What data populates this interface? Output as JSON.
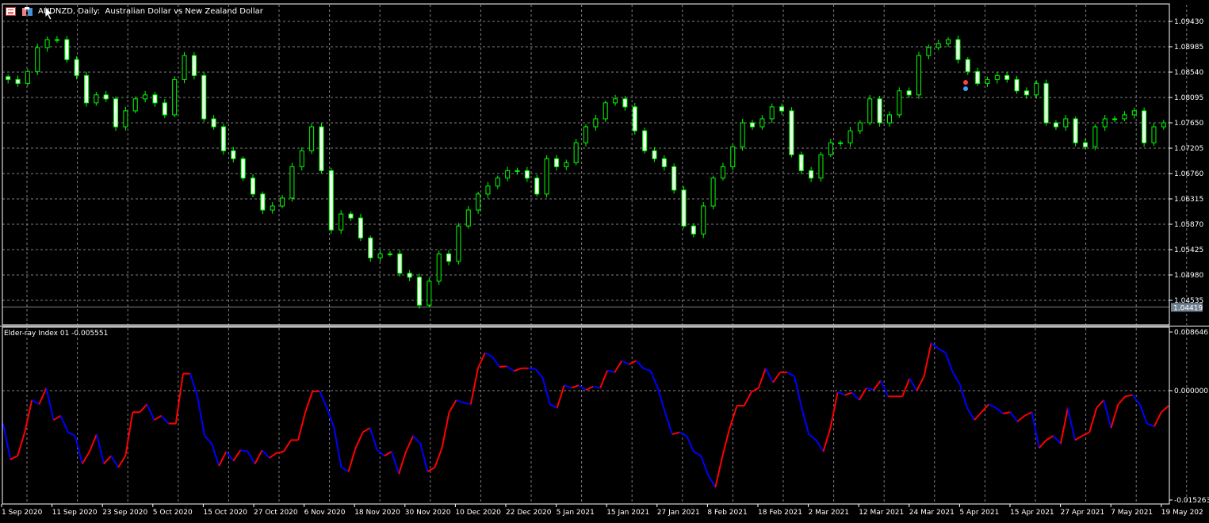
{
  "header": {
    "title": "AUDNZD, Daily:  Australian Dollar vs New Zealand Dollar",
    "icons": [
      "list-icon",
      "chart-toolbox-icon"
    ]
  },
  "colors": {
    "background": "#000000",
    "grid": "#808080",
    "candle_up_outline": "#00ff00",
    "candle_up_fill": "#000000",
    "candle_down_fill": "#f0fff0",
    "indicator_rising": "#ff0000",
    "indicator_falling": "#0000ff",
    "current_price_box": "#708090"
  },
  "chart_data": [
    {
      "type": "candlestick",
      "symbol": "AUDNZD",
      "timeframe": "Daily",
      "price_ticks": [
        "1.09430",
        "1.08985",
        "1.08540",
        "1.08095",
        "1.07650",
        "1.07205",
        "1.06760",
        "1.06315",
        "1.05870",
        "1.05425",
        "1.04980",
        "1.04535"
      ],
      "current_price": "1.04419",
      "ylim": [
        1.0443,
        1.0975
      ],
      "grid": true,
      "x_ticks": [
        "1 Sep 2020",
        "11 Sep 2020",
        "23 Sep 2020",
        "5 Oct 2020",
        "15 Oct 2020",
        "27 Oct 2020",
        "6 Nov 2020",
        "18 Nov 2020",
        "30 Nov 2020",
        "10 Dec 2020",
        "22 Dec 2020",
        "5 Jan 2021",
        "15 Jan 2021",
        "27 Jan 2021",
        "8 Feb 2021",
        "18 Feb 2021",
        "2 Mar 2021",
        "12 Mar 2021",
        "24 Mar 2021",
        "5 Apr 2021",
        "15 Apr 2021",
        "27 Apr 2021",
        "7 May 2021",
        "19 May 202"
      ],
      "close": [
        1.0841,
        1.0834,
        1.0855,
        1.0897,
        1.0911,
        1.0911,
        1.0876,
        1.0848,
        1.08,
        1.0814,
        1.0807,
        1.0758,
        1.0786,
        1.0807,
        1.0814,
        1.08,
        1.0779,
        1.0841,
        1.0883,
        1.0848,
        1.0772,
        1.0758,
        1.0716,
        1.0702,
        1.0668,
        1.064,
        1.0612,
        1.0619,
        1.0633,
        1.0688,
        1.0716,
        1.0758,
        1.0681,
        1.0577,
        1.0605,
        1.0598,
        1.0563,
        1.0528,
        1.0535,
        1.0535,
        1.0501,
        1.0494,
        1.0445,
        1.0487,
        1.0535,
        1.0522,
        1.0584,
        1.0612,
        1.064,
        1.0654,
        1.0668,
        1.0681,
        1.0681,
        1.0668,
        1.064,
        1.0702,
        1.0688,
        1.0695,
        1.073,
        1.0758,
        1.0772,
        1.08,
        1.0807,
        1.0793,
        1.0751,
        1.0716,
        1.0702,
        1.0688,
        1.0647,
        1.0584,
        1.057,
        1.0619,
        1.0668,
        1.0688,
        1.0723,
        1.0765,
        1.0758,
        1.0772,
        1.0793,
        1.0786,
        1.0709,
        1.0681,
        1.0668,
        1.0709,
        1.073,
        1.073,
        1.0751,
        1.0765,
        1.0807,
        1.0765,
        1.0779,
        1.0821,
        1.0814,
        1.0883,
        1.0897,
        1.0904,
        1.0911,
        1.0876,
        1.0855,
        1.0834,
        1.0841,
        1.0848,
        1.0841,
        1.0821,
        1.0814,
        1.0834,
        1.0765,
        1.0758,
        1.0772,
        1.073,
        1.0723,
        1.0758,
        1.0772,
        1.0772,
        1.0779,
        1.0786,
        1.073,
        1.0758,
        1.0765
      ]
    },
    {
      "type": "line",
      "title": "Elder-ray Index 01 -0.005551",
      "y_ticks": [
        "0.008646",
        "0.000000",
        "-0.015263"
      ],
      "ylim": [
        -0.015263,
        0.008646
      ],
      "values": [
        -0.0046,
        -0.0096,
        -0.0091,
        -0.0058,
        -0.0013,
        -0.0019,
        0.0004,
        -0.0041,
        -0.0035,
        -0.0058,
        -0.0063,
        -0.0102,
        -0.0085,
        -0.0061,
        -0.0102,
        -0.0091,
        -0.0107,
        -0.0091,
        -0.003,
        -0.003,
        -0.0019,
        -0.0041,
        -0.0035,
        -0.0046,
        -0.0046,
        0.0025,
        0.0025,
        -0.0008,
        -0.0063,
        -0.0074,
        -0.0105,
        -0.0085,
        -0.0098,
        -0.0083,
        -0.0085,
        -0.0102,
        -0.0083,
        -0.0094,
        -0.0087,
        -0.0085,
        -0.0069,
        -0.0069,
        -0.003,
        -0.0001,
        -0.0001,
        -0.0024,
        -0.0052,
        -0.0107,
        -0.0113,
        -0.008,
        -0.0058,
        -0.0052,
        -0.0083,
        -0.0091,
        -0.0085,
        -0.0116,
        -0.0085,
        -0.0063,
        -0.0074,
        -0.0113,
        -0.0107,
        -0.008,
        -0.003,
        -0.0013,
        -0.0017,
        -0.0019,
        0.0033,
        0.0056,
        0.005,
        0.0035,
        0.0036,
        0.0029,
        0.0033,
        0.0033,
        0.0032,
        0.0019,
        -0.0019,
        -0.0024,
        0.0008,
        0.0004,
        0.0008,
        0.0001,
        0.0006,
        0.0004,
        0.003,
        0.0027,
        0.0044,
        0.0039,
        0.0044,
        0.0033,
        0.0029,
        0.0004,
        -0.003,
        -0.0061,
        -0.0058,
        -0.0063,
        -0.0085,
        -0.0091,
        -0.0118,
        -0.0135,
        -0.0091,
        -0.0052,
        -0.0021,
        -0.0021,
        -0.0002,
        0.0004,
        0.0033,
        0.0012,
        0.0027,
        0.0027,
        0.0021,
        -0.0024,
        -0.0061,
        -0.0069,
        -0.0085,
        -0.0052,
        -0.0002,
        -0.0006,
        -0.0003,
        -0.0013,
        0.0004,
        0.0001,
        0.0015,
        -0.0008,
        -0.0008,
        -0.0008,
        0.0018,
        0.0,
        0.0021,
        0.007,
        0.0062,
        0.0056,
        0.0027,
        0.0009,
        -0.0024,
        -0.0041,
        -0.003,
        -0.0019,
        -0.0024,
        -0.0032,
        -0.003,
        -0.0043,
        -0.0035,
        -0.003,
        -0.008,
        -0.0069,
        -0.0063,
        -0.0074,
        -0.0024,
        -0.0069,
        -0.0063,
        -0.0058,
        -0.0024,
        -0.0013,
        -0.0052,
        -0.0019,
        -0.0008,
        -0.0006,
        -0.0019,
        -0.0046,
        -0.005,
        -0.003,
        -0.0021
      ]
    }
  ]
}
